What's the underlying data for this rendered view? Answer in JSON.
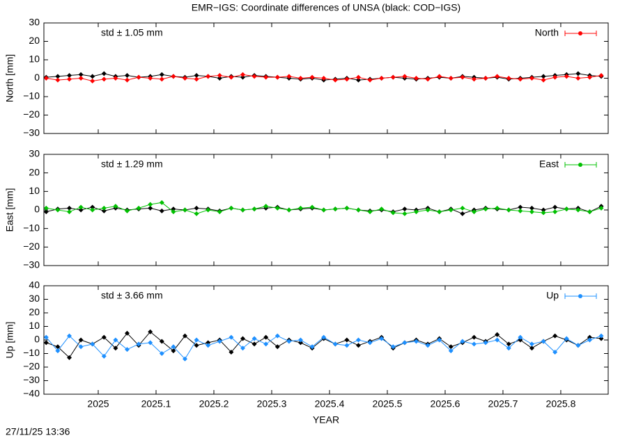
{
  "title": "EMR−IGS: Coordinate differences of UNSA (black: COD−IGS)",
  "timestamp": "27/11/25 13:36",
  "chart_data": [
    {
      "type": "line",
      "ylabel": "North [mm]",
      "annotation": "std ± 1.05 mm",
      "xlim": [
        2024.906,
        2025.882
      ],
      "xticks": [
        2025,
        2025.1,
        2025.2,
        2025.3,
        2025.4,
        2025.5,
        2025.6,
        2025.7,
        2025.8
      ],
      "ylim": [
        -30,
        30
      ],
      "yticks": [
        30,
        20,
        10,
        0,
        {
          "value": -10,
          "label": "−10"
        },
        {
          "value": -20,
          "label": "−20"
        },
        {
          "value": -30,
          "label": "−30"
        }
      ],
      "x": [
        2024.91,
        2024.93,
        2024.95,
        2024.97,
        2024.99,
        2025.01,
        2025.03,
        2025.05,
        2025.07,
        2025.09,
        2025.11,
        2025.13,
        2025.15,
        2025.17,
        2025.19,
        2025.21,
        2025.23,
        2025.25,
        2025.27,
        2025.29,
        2025.31,
        2025.33,
        2025.35,
        2025.37,
        2025.39,
        2025.41,
        2025.43,
        2025.45,
        2025.47,
        2025.49,
        2025.51,
        2025.53,
        2025.55,
        2025.57,
        2025.59,
        2025.61,
        2025.63,
        2025.65,
        2025.67,
        2025.69,
        2025.71,
        2025.73,
        2025.75,
        2025.77,
        2025.79,
        2025.81,
        2025.83,
        2025.85,
        2025.87
      ],
      "series": [
        {
          "color": "#000000",
          "values": [
            0.5,
            1,
            1.5,
            2,
            1,
            2.5,
            1,
            1.5,
            0.5,
            1,
            2,
            1,
            0.5,
            1.5,
            1,
            0,
            1,
            0.5,
            1.5,
            1,
            0.5,
            0,
            -0.5,
            0,
            -1,
            -0.5,
            0,
            -1,
            -0.5,
            0,
            0.5,
            0,
            -0.5,
            0,
            0.5,
            0,
            1,
            0.5,
            0,
            0.5,
            -0.5,
            0,
            0.5,
            1,
            1.5,
            2,
            2.5,
            1.5,
            1
          ]
        },
        {
          "name": "North",
          "color": "#ff0000",
          "values": [
            0,
            -1,
            -0.5,
            0,
            -1.5,
            -0.5,
            0,
            -1,
            0.5,
            0,
            -0.5,
            1,
            0,
            -0.5,
            1,
            1.5,
            0.5,
            2,
            1,
            0.5,
            0.5,
            1,
            0,
            0.5,
            0,
            -1,
            -0.5,
            0.5,
            -1,
            0,
            0.5,
            1,
            0,
            -0.5,
            1,
            0,
            0.5,
            -0.5,
            0,
            1,
            0,
            -0.5,
            0,
            -1,
            0.5,
            1,
            0,
            0.5,
            1.5
          ]
        }
      ]
    },
    {
      "type": "line",
      "ylabel": "East [mm]",
      "annotation": "std ± 1.29 mm",
      "xlim": [
        2024.906,
        2025.882
      ],
      "xticks": [
        2025,
        2025.1,
        2025.2,
        2025.3,
        2025.4,
        2025.5,
        2025.6,
        2025.7,
        2025.8
      ],
      "ylim": [
        -30,
        30
      ],
      "yticks": [
        30,
        20,
        10,
        0,
        {
          "value": -10,
          "label": "−10"
        },
        {
          "value": -20,
          "label": "−20"
        },
        {
          "value": -30,
          "label": "−30"
        }
      ],
      "x": [
        2024.91,
        2024.93,
        2024.95,
        2024.97,
        2024.99,
        2025.01,
        2025.03,
        2025.05,
        2025.07,
        2025.09,
        2025.11,
        2025.13,
        2025.15,
        2025.17,
        2025.19,
        2025.21,
        2025.23,
        2025.25,
        2025.27,
        2025.29,
        2025.31,
        2025.33,
        2025.35,
        2025.37,
        2025.39,
        2025.41,
        2025.43,
        2025.45,
        2025.47,
        2025.49,
        2025.51,
        2025.53,
        2025.55,
        2025.57,
        2025.59,
        2025.61,
        2025.63,
        2025.65,
        2025.67,
        2025.69,
        2025.71,
        2025.73,
        2025.75,
        2025.77,
        2025.79,
        2025.81,
        2025.83,
        2025.85,
        2025.87
      ],
      "series": [
        {
          "color": "#000000",
          "values": [
            -1,
            0.5,
            1,
            0,
            1.5,
            -0.5,
            1,
            0,
            0.5,
            1,
            -0.5,
            0.5,
            0,
            1,
            0.5,
            -0.5,
            1,
            0,
            0.5,
            1,
            1.5,
            0,
            0.5,
            1,
            0,
            0.5,
            1,
            0,
            -0.5,
            0,
            -1,
            0.5,
            0,
            1,
            -1,
            0.5,
            -2,
            0,
            1,
            0.5,
            0,
            1.5,
            1,
            0,
            1.5,
            0.5,
            1,
            -1,
            2
          ]
        },
        {
          "name": "East",
          "color": "#00c000",
          "values": [
            1,
            0,
            -1,
            1.5,
            0,
            1,
            2,
            -0.5,
            1,
            3,
            4,
            -1,
            0,
            -2,
            0,
            -1,
            1,
            0,
            0.5,
            2,
            1,
            0,
            1,
            1.5,
            0,
            0.5,
            1,
            0,
            -1,
            0.5,
            -1.5,
            -2,
            -1,
            0,
            -1,
            0,
            1,
            -1,
            0.5,
            1,
            0,
            -0.5,
            -1,
            -1.5,
            -1,
            0.5,
            0,
            -1,
            1
          ]
        }
      ]
    },
    {
      "type": "line",
      "ylabel": "Up [mm]",
      "annotation": "std ± 3.66 mm",
      "xlabel": "YEAR",
      "xlim": [
        2024.906,
        2025.882
      ],
      "xticks": [
        2025,
        2025.1,
        2025.2,
        2025.3,
        2025.4,
        2025.5,
        2025.6,
        2025.7,
        2025.8
      ],
      "ylim": [
        -40,
        40
      ],
      "yticks": [
        40,
        30,
        20,
        10,
        0,
        {
          "value": -10,
          "label": "−10"
        },
        {
          "value": -20,
          "label": "−20"
        },
        {
          "value": -30,
          "label": "−30"
        },
        {
          "value": -40,
          "label": "−40"
        }
      ],
      "x": [
        2024.91,
        2024.93,
        2024.95,
        2024.97,
        2024.99,
        2025.01,
        2025.03,
        2025.05,
        2025.07,
        2025.09,
        2025.11,
        2025.13,
        2025.15,
        2025.17,
        2025.19,
        2025.21,
        2025.23,
        2025.25,
        2025.27,
        2025.29,
        2025.31,
        2025.33,
        2025.35,
        2025.37,
        2025.39,
        2025.41,
        2025.43,
        2025.45,
        2025.47,
        2025.49,
        2025.51,
        2025.53,
        2025.55,
        2025.57,
        2025.59,
        2025.61,
        2025.63,
        2025.65,
        2025.67,
        2025.69,
        2025.71,
        2025.73,
        2025.75,
        2025.77,
        2025.79,
        2025.81,
        2025.83,
        2025.85,
        2025.87
      ],
      "series": [
        {
          "color": "#000000",
          "values": [
            -2,
            -5,
            -13,
            0,
            -3,
            2,
            -6,
            5,
            -4,
            6,
            -1,
            -8,
            3,
            -4,
            -2,
            0,
            -9,
            1,
            -3,
            2,
            -5,
            0,
            -2,
            -6,
            1,
            -3,
            0,
            -4,
            -1,
            2,
            -6,
            -2,
            0,
            -3,
            1,
            -5,
            -2,
            2,
            -1,
            4,
            -3,
            0,
            -6,
            -1,
            3,
            0,
            -4,
            2,
            1
          ]
        },
        {
          "name": "Up",
          "color": "#1e90ff",
          "values": [
            2,
            -8,
            3,
            -5,
            -3,
            -12,
            0,
            -7,
            -3,
            -2,
            -10,
            -5,
            -14,
            0,
            -4,
            -1,
            2,
            -6,
            1,
            -3,
            3,
            -1,
            0,
            -5,
            2,
            -3,
            -4,
            0,
            -2,
            1,
            -5,
            -2,
            -1,
            -4,
            0,
            -8,
            -1,
            -3,
            -2,
            0,
            -6,
            2,
            -3,
            -1,
            -9,
            1,
            -4,
            0,
            3
          ]
        }
      ]
    }
  ]
}
